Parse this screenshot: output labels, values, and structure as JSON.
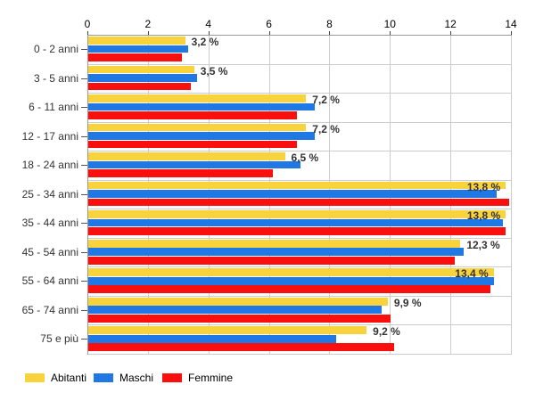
{
  "chart_data": {
    "type": "bar",
    "orientation": "horizontal",
    "title": "",
    "xlabel": "",
    "ylabel": "",
    "xlim": [
      0,
      14
    ],
    "x_ticks": [
      0,
      2,
      4,
      6,
      8,
      10,
      12,
      14
    ],
    "grid": true,
    "legend_position": "bottom-left",
    "categories": [
      "0 - 2 anni",
      "3 - 5 anni",
      "6 - 11 anni",
      "12 - 17 anni",
      "18 - 24 anni",
      "25 - 34 anni",
      "35 - 44 anni",
      "45 - 54 anni",
      "55 - 64 anni",
      "65 - 74 anni",
      "75 e più"
    ],
    "series": [
      {
        "name": "Abitanti",
        "color": "#F9D33C",
        "values": [
          3.2,
          3.5,
          7.2,
          7.2,
          6.5,
          13.8,
          13.8,
          12.3,
          13.4,
          9.9,
          9.2
        ]
      },
      {
        "name": "Maschi",
        "color": "#1F78E3",
        "values": [
          3.3,
          3.6,
          7.5,
          7.5,
          7.0,
          13.5,
          13.7,
          12.4,
          13.4,
          9.7,
          8.2
        ]
      },
      {
        "name": "Femmine",
        "color": "#FA0F0F",
        "values": [
          3.1,
          3.4,
          6.9,
          6.9,
          6.1,
          13.9,
          13.8,
          12.1,
          13.3,
          10.0,
          10.1
        ]
      }
    ],
    "value_labels": [
      "3,2 %",
      "3,5 %",
      "7,2 %",
      "7,2 %",
      "6,5 %",
      "13,8 %",
      "13,8 %",
      "12,3 %",
      "13,4 %",
      "9,9 %",
      "9,2 %"
    ]
  },
  "colors": {
    "background": "#ffffff",
    "gridline": "#cccccc",
    "axis_line": "#999999",
    "value_label": "#333333",
    "category_label": "#333333"
  }
}
